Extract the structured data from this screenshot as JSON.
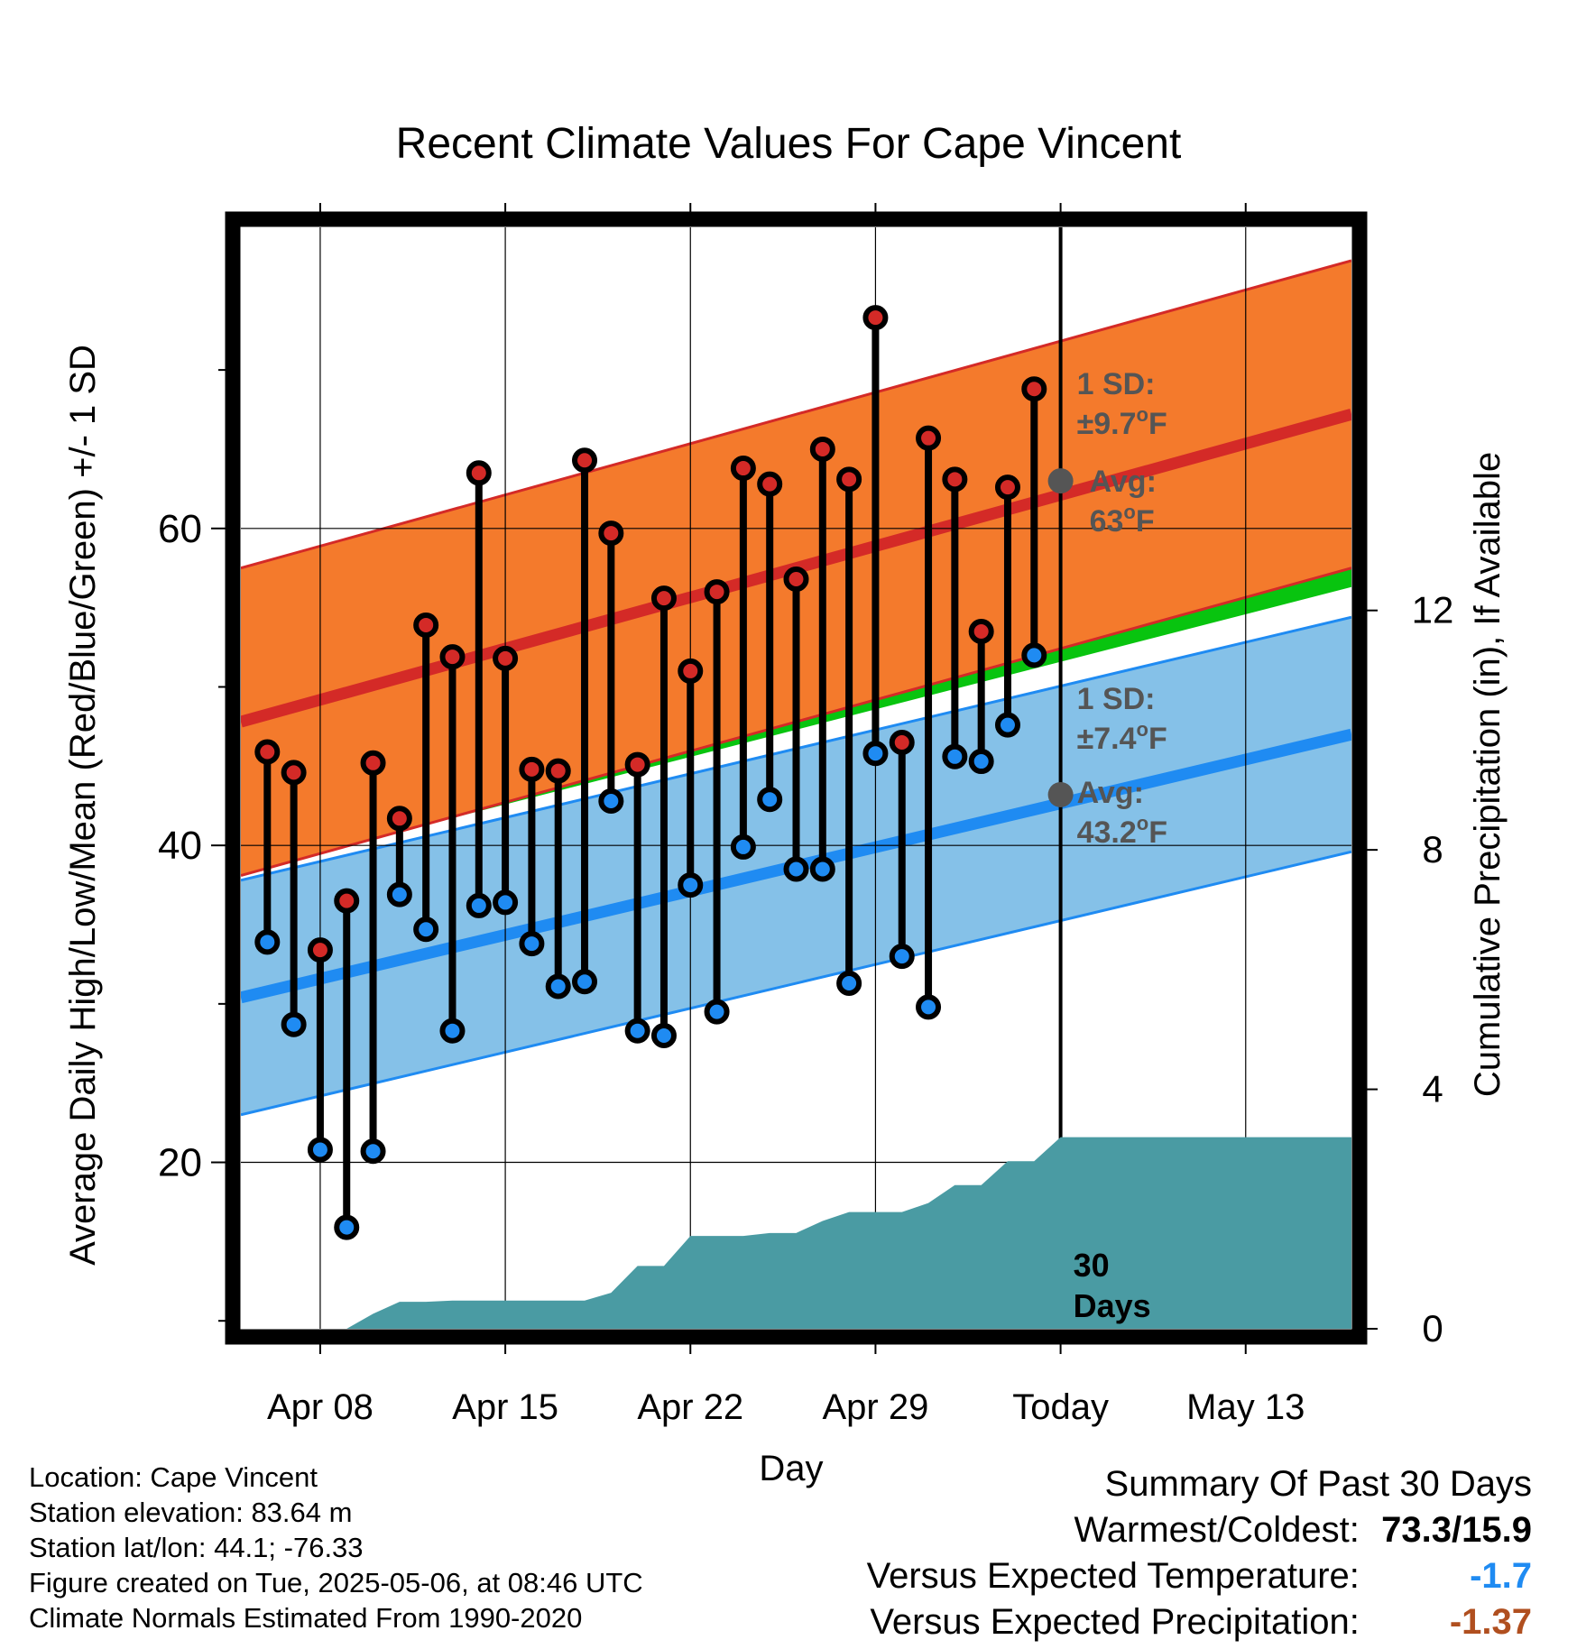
{
  "chart_data": {
    "type": "line",
    "title": "Recent Climate Values For Cape Vincent",
    "xlabel": "Day",
    "ylabel": "Average Daily High/Low/Mean (Red/Blue/Green) +/- 1 SD",
    "y2label": "Cumulative Precipitation (in), If Available",
    "x_range": [
      "2025-04-05",
      "2025-05-17"
    ],
    "ylim": [
      9.5,
      79
    ],
    "y2lim": [
      0,
      18.4
    ],
    "x_ticks": [
      {
        "date": "2025-04-08",
        "label": "Apr 08"
      },
      {
        "date": "2025-04-15",
        "label": "Apr 15"
      },
      {
        "date": "2025-04-22",
        "label": "Apr 22"
      },
      {
        "date": "2025-04-29",
        "label": "Apr 29"
      },
      {
        "date": "2025-05-06",
        "label": "Today"
      },
      {
        "date": "2025-05-13",
        "label": "May 13"
      }
    ],
    "y_ticks_labeled": [
      20,
      40,
      60
    ],
    "y_ticks_minor": [
      10,
      30,
      50,
      70
    ],
    "y2_ticks": [
      0,
      4,
      8,
      12
    ],
    "grid": true,
    "normal_high": {
      "x": [
        "2025-04-05",
        "2025-05-17"
      ],
      "avg": [
        47.8,
        67.2
      ],
      "sd": 9.7
    },
    "normal_low": {
      "x": [
        "2025-04-05",
        "2025-05-17"
      ],
      "avg": [
        30.4,
        47.0
      ],
      "sd": 7.4
    },
    "normal_mean": {
      "x": [
        "2025-04-05",
        "2025-05-17"
      ],
      "avg": [
        39.1,
        57.1
      ]
    },
    "daily_observations": {
      "dates": [
        "2025-04-06",
        "2025-04-07",
        "2025-04-08",
        "2025-04-09",
        "2025-04-10",
        "2025-04-11",
        "2025-04-12",
        "2025-04-13",
        "2025-04-14",
        "2025-04-15",
        "2025-04-16",
        "2025-04-17",
        "2025-04-18",
        "2025-04-19",
        "2025-04-20",
        "2025-04-21",
        "2025-04-22",
        "2025-04-23",
        "2025-04-24",
        "2025-04-25",
        "2025-04-26",
        "2025-04-27",
        "2025-04-28",
        "2025-04-29",
        "2025-04-30",
        "2025-05-01",
        "2025-05-02",
        "2025-05-03",
        "2025-05-04",
        "2025-05-05"
      ],
      "high": [
        45.9,
        44.6,
        33.4,
        36.5,
        45.2,
        41.7,
        53.9,
        51.9,
        63.5,
        51.8,
        44.8,
        44.7,
        64.3,
        59.7,
        45.1,
        55.6,
        51.0,
        56.0,
        63.8,
        62.8,
        56.8,
        65.0,
        63.1,
        73.3,
        46.5,
        65.7,
        63.1,
        53.5,
        62.6,
        68.8
      ],
      "low": [
        33.9,
        28.7,
        20.8,
        15.9,
        20.7,
        36.9,
        34.7,
        28.3,
        36.2,
        36.4,
        33.8,
        31.1,
        31.4,
        42.8,
        28.3,
        28.0,
        37.5,
        29.5,
        39.9,
        42.9,
        38.5,
        38.5,
        31.3,
        45.8,
        33.0,
        29.8,
        45.6,
        45.3,
        47.6,
        52.0
      ]
    },
    "cumulative_precip": {
      "dates": [
        "2025-04-05",
        "2025-04-09",
        "2025-04-10",
        "2025-04-11",
        "2025-04-12",
        "2025-04-13",
        "2025-04-14",
        "2025-04-15",
        "2025-04-16",
        "2025-04-17",
        "2025-04-18",
        "2025-04-19",
        "2025-04-20",
        "2025-04-21",
        "2025-04-22",
        "2025-04-23",
        "2025-04-24",
        "2025-04-25",
        "2025-04-26",
        "2025-04-27",
        "2025-04-28",
        "2025-04-29",
        "2025-04-30",
        "2025-05-01",
        "2025-05-02",
        "2025-05-03",
        "2025-05-04",
        "2025-05-05",
        "2025-05-06",
        "2025-05-17"
      ],
      "values": [
        0,
        0,
        0.25,
        0.45,
        0.45,
        0.47,
        0.47,
        0.47,
        0.47,
        0.47,
        0.47,
        0.6,
        1.05,
        1.05,
        1.55,
        1.55,
        1.55,
        1.6,
        1.6,
        1.8,
        1.95,
        1.95,
        1.95,
        2.1,
        2.4,
        2.4,
        2.8,
        2.8,
        3.2,
        3.2
      ]
    },
    "annotations": {
      "high_sd": "1 SD:",
      "high_sd_value": "±9.7",
      "high_avg": "Avg:",
      "high_avg_value": "63",
      "low_sd": "1 SD:",
      "low_sd_value": "±7.4",
      "low_avg": "Avg:",
      "low_avg_value": "43.2",
      "unit": "F",
      "degree": "o",
      "precip_days": "30",
      "precip_days_label": "Days"
    },
    "colors": {
      "high_band": "#f47a2c",
      "high_line": "#d42a27",
      "low_band": "#85c1e8",
      "low_line": "#1f8bf2",
      "mean_band": "#08c40f",
      "precip": "#4a9ba3",
      "high_marker": "#d42a27",
      "low_marker": "#1f8bf2",
      "annotation_text": "#555555"
    }
  },
  "footer": {
    "location": "Location: Cape Vincent",
    "elevation": "Station elevation: 83.64 m",
    "latlon": "Station lat/lon: 44.1; -76.33",
    "created": "Figure created on Tue, 2025-05-06, at 08:46 UTC",
    "normals": "Climate Normals Estimated From 1990-2020"
  },
  "summary": {
    "heading": "Summary Of Past 30 Days",
    "warmest_coldest_label": "Warmest/Coldest:",
    "warmest_coldest_value": "73.3/15.9",
    "temp_label": "Versus Expected Temperature:",
    "temp_value": "-1.7",
    "temp_color": "#1f8bf2",
    "precip_label": "Versus Expected Precipitation:",
    "precip_value": "-1.37",
    "precip_color": "#b04f1f"
  }
}
